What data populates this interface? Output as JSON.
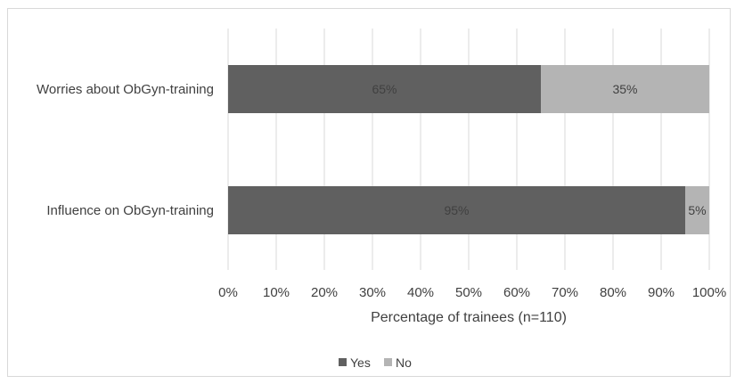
{
  "chart_data": {
    "type": "bar",
    "orientation": "horizontal",
    "stacked": true,
    "categories": [
      "Worries about ObGyn-training",
      "Influence on ObGyn-training"
    ],
    "series": [
      {
        "name": "Yes",
        "values": [
          65,
          95
        ],
        "labels": [
          "65%",
          "95%"
        ],
        "color": "#606060"
      },
      {
        "name": "No",
        "values": [
          35,
          5
        ],
        "labels": [
          "35%",
          "5%"
        ],
        "color": "#b4b4b4"
      }
    ],
    "xlabel": "Percentage of trainees (n=110)",
    "ylabel": "",
    "xlim": [
      0,
      100
    ],
    "xticks": [
      "0%",
      "10%",
      "20%",
      "30%",
      "40%",
      "50%",
      "60%",
      "70%",
      "80%",
      "90%",
      "100%"
    ],
    "grid": true,
    "legend": "bottom"
  },
  "colors": {
    "grid": "#d9d9d9",
    "text": "#404040"
  }
}
